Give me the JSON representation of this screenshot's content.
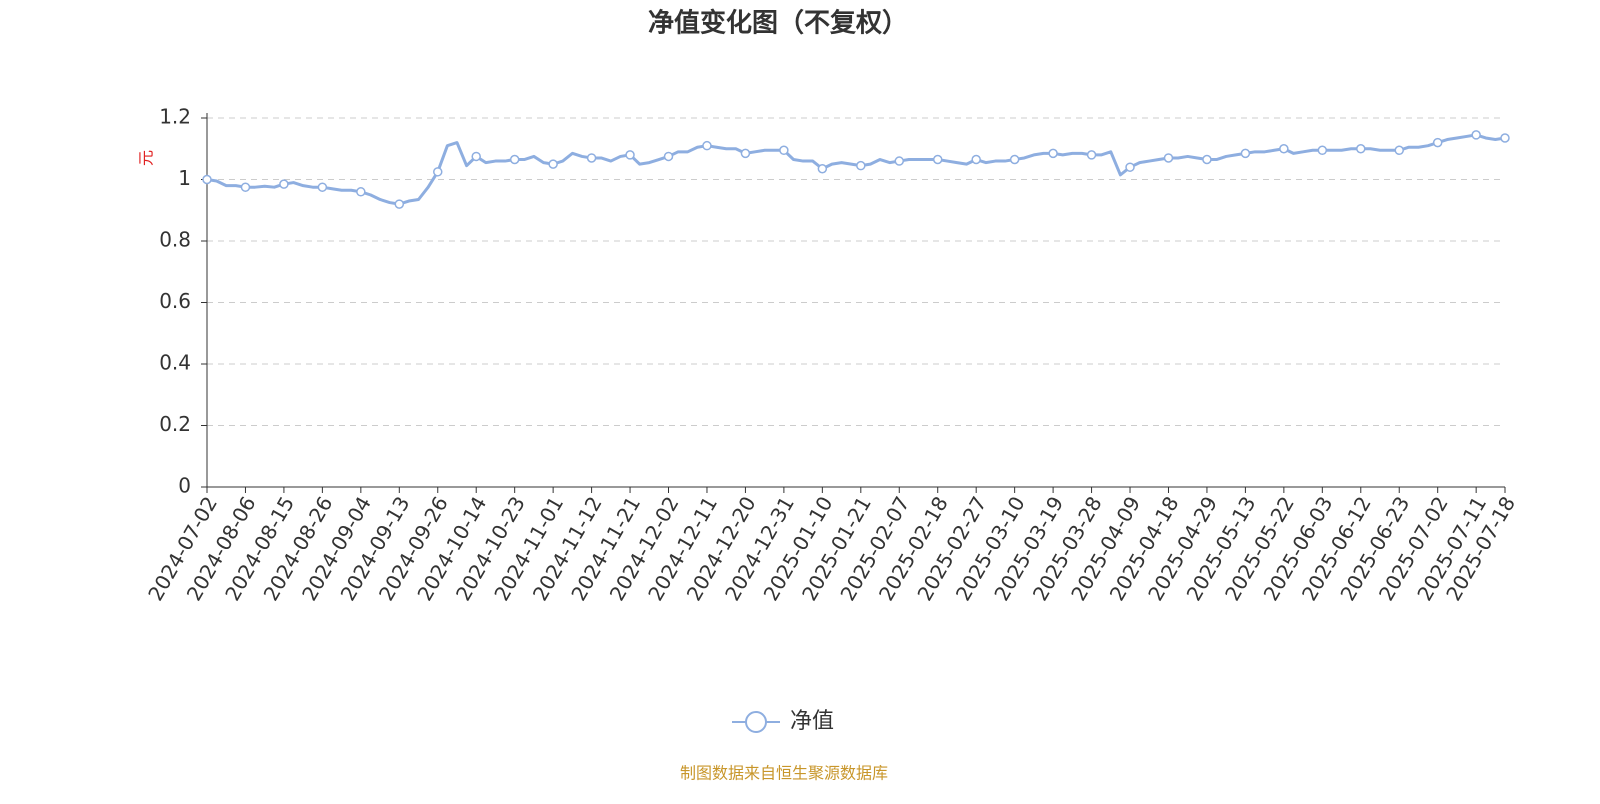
{
  "chart_data": {
    "type": "line",
    "title": "净值变化图（不复权）",
    "y_label": "元",
    "source": "制图数据来自恒生聚源数据库",
    "categories": [
      "2024-07-02",
      null,
      null,
      null,
      "2024-08-06",
      null,
      null,
      null,
      "2024-08-15",
      null,
      null,
      null,
      "2024-08-26",
      null,
      null,
      null,
      "2024-09-04",
      null,
      null,
      null,
      "2024-09-13",
      null,
      null,
      null,
      "2024-09-26",
      null,
      null,
      null,
      "2024-10-14",
      null,
      null,
      null,
      "2024-10-23",
      null,
      null,
      null,
      "2024-11-01",
      null,
      null,
      null,
      "2024-11-12",
      null,
      null,
      null,
      "2024-11-21",
      null,
      null,
      null,
      "2024-12-02",
      null,
      null,
      null,
      "2024-12-11",
      null,
      null,
      null,
      "2024-12-20",
      null,
      null,
      null,
      "2024-12-31",
      null,
      null,
      null,
      "2025-01-10",
      null,
      null,
      null,
      "2025-01-21",
      null,
      null,
      null,
      "2025-02-07",
      null,
      null,
      null,
      "2025-02-18",
      null,
      null,
      null,
      "2025-02-27",
      null,
      null,
      null,
      "2025-03-10",
      null,
      null,
      null,
      "2025-03-19",
      null,
      null,
      null,
      "2025-03-28",
      null,
      null,
      null,
      "2025-04-09",
      null,
      null,
      null,
      "2025-04-18",
      null,
      null,
      null,
      "2025-04-29",
      null,
      null,
      null,
      "2025-05-13",
      null,
      null,
      null,
      "2025-05-22",
      null,
      null,
      null,
      "2025-06-03",
      null,
      null,
      null,
      "2025-06-12",
      null,
      null,
      null,
      "2025-06-23",
      null,
      null,
      null,
      "2025-07-02",
      null,
      null,
      null,
      "2025-07-11",
      null,
      null,
      "2025-07-18"
    ],
    "series": [
      {
        "name": "净值",
        "color": "#8eaee0",
        "values": [
          1.0,
          0.995,
          0.98,
          0.98,
          0.975,
          0.975,
          0.978,
          0.975,
          0.985,
          0.99,
          0.98,
          0.975,
          0.975,
          0.97,
          0.965,
          0.965,
          0.96,
          0.95,
          0.935,
          0.925,
          0.92,
          0.93,
          0.935,
          0.975,
          1.025,
          1.11,
          1.12,
          1.045,
          1.075,
          1.055,
          1.06,
          1.06,
          1.065,
          1.065,
          1.075,
          1.055,
          1.05,
          1.06,
          1.085,
          1.075,
          1.07,
          1.07,
          1.06,
          1.075,
          1.08,
          1.05,
          1.055,
          1.065,
          1.075,
          1.09,
          1.09,
          1.105,
          1.11,
          1.105,
          1.1,
          1.1,
          1.085,
          1.09,
          1.095,
          1.095,
          1.095,
          1.065,
          1.06,
          1.06,
          1.035,
          1.05,
          1.055,
          1.05,
          1.045,
          1.05,
          1.065,
          1.055,
          1.06,
          1.065,
          1.065,
          1.065,
          1.065,
          1.06,
          1.055,
          1.05,
          1.065,
          1.055,
          1.06,
          1.06,
          1.065,
          1.07,
          1.08,
          1.085,
          1.085,
          1.08,
          1.085,
          1.085,
          1.08,
          1.08,
          1.09,
          1.015,
          1.04,
          1.055,
          1.06,
          1.065,
          1.07,
          1.07,
          1.075,
          1.07,
          1.065,
          1.065,
          1.075,
          1.08,
          1.085,
          1.09,
          1.09,
          1.095,
          1.1,
          1.085,
          1.09,
          1.095,
          1.095,
          1.095,
          1.095,
          1.1,
          1.1,
          1.1,
          1.095,
          1.095,
          1.095,
          1.105,
          1.105,
          1.11,
          1.12,
          1.13,
          1.135,
          1.14,
          1.145,
          1.135,
          1.13,
          1.135
        ]
      }
    ],
    "ylim": [
      0,
      1.2
    ],
    "yticks": [
      0,
      0.2,
      0.4,
      0.6,
      0.8,
      1,
      1.2
    ],
    "grid": true
  }
}
